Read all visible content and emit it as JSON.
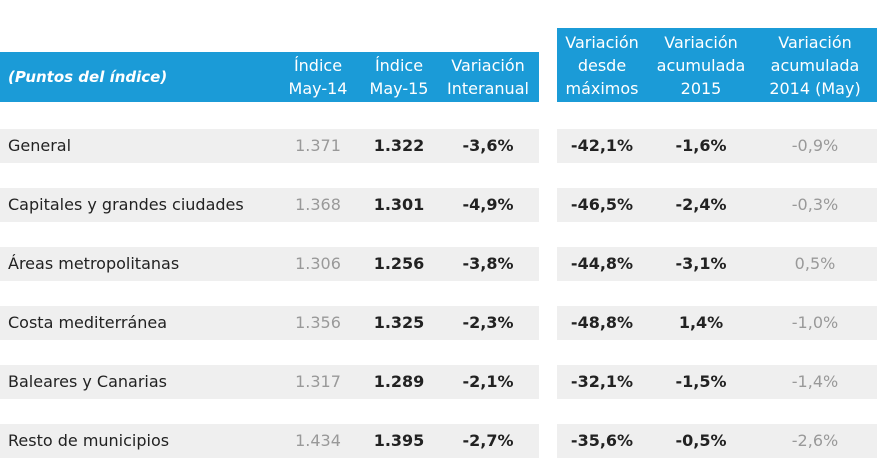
{
  "header": {
    "title": "(Puntos del índice)",
    "columns": [
      [
        "Índice",
        "May-14"
      ],
      [
        "Índice",
        "May-15"
      ],
      [
        "Variación",
        "Interanual"
      ],
      [
        "Variación",
        "desde",
        "máximos"
      ],
      [
        "Variación",
        "acumulada",
        "2015"
      ],
      [
        "Variación",
        "acumulada",
        "2014 (May)"
      ]
    ]
  },
  "rows": [
    [
      "General",
      "1.371",
      "1.322",
      "-3,6%",
      "-42,1%",
      "-1,6%",
      "-0,9%"
    ],
    [
      "Capitales y grandes ciudades",
      "1.368",
      "1.301",
      "-4,9%",
      "-46,5%",
      "-2,4%",
      "-0,3%"
    ],
    [
      "Áreas metropolitanas",
      "1.306",
      "1.256",
      "-3,8%",
      "-44,8%",
      "-3,1%",
      "0,5%"
    ],
    [
      "Costa mediterránea",
      "1.356",
      "1.325",
      "-2,3%",
      "-48,8%",
      "1,4%",
      "-1,0%"
    ],
    [
      "Baleares y Canarias",
      "1.317",
      "1.289",
      "-2,1%",
      "-32,1%",
      "-1,5%",
      "-1,4%"
    ],
    [
      "Resto de municipios",
      "1.434",
      "1.395",
      "-2,7%",
      "-35,6%",
      "-0,5%",
      "-2,6%"
    ]
  ]
}
